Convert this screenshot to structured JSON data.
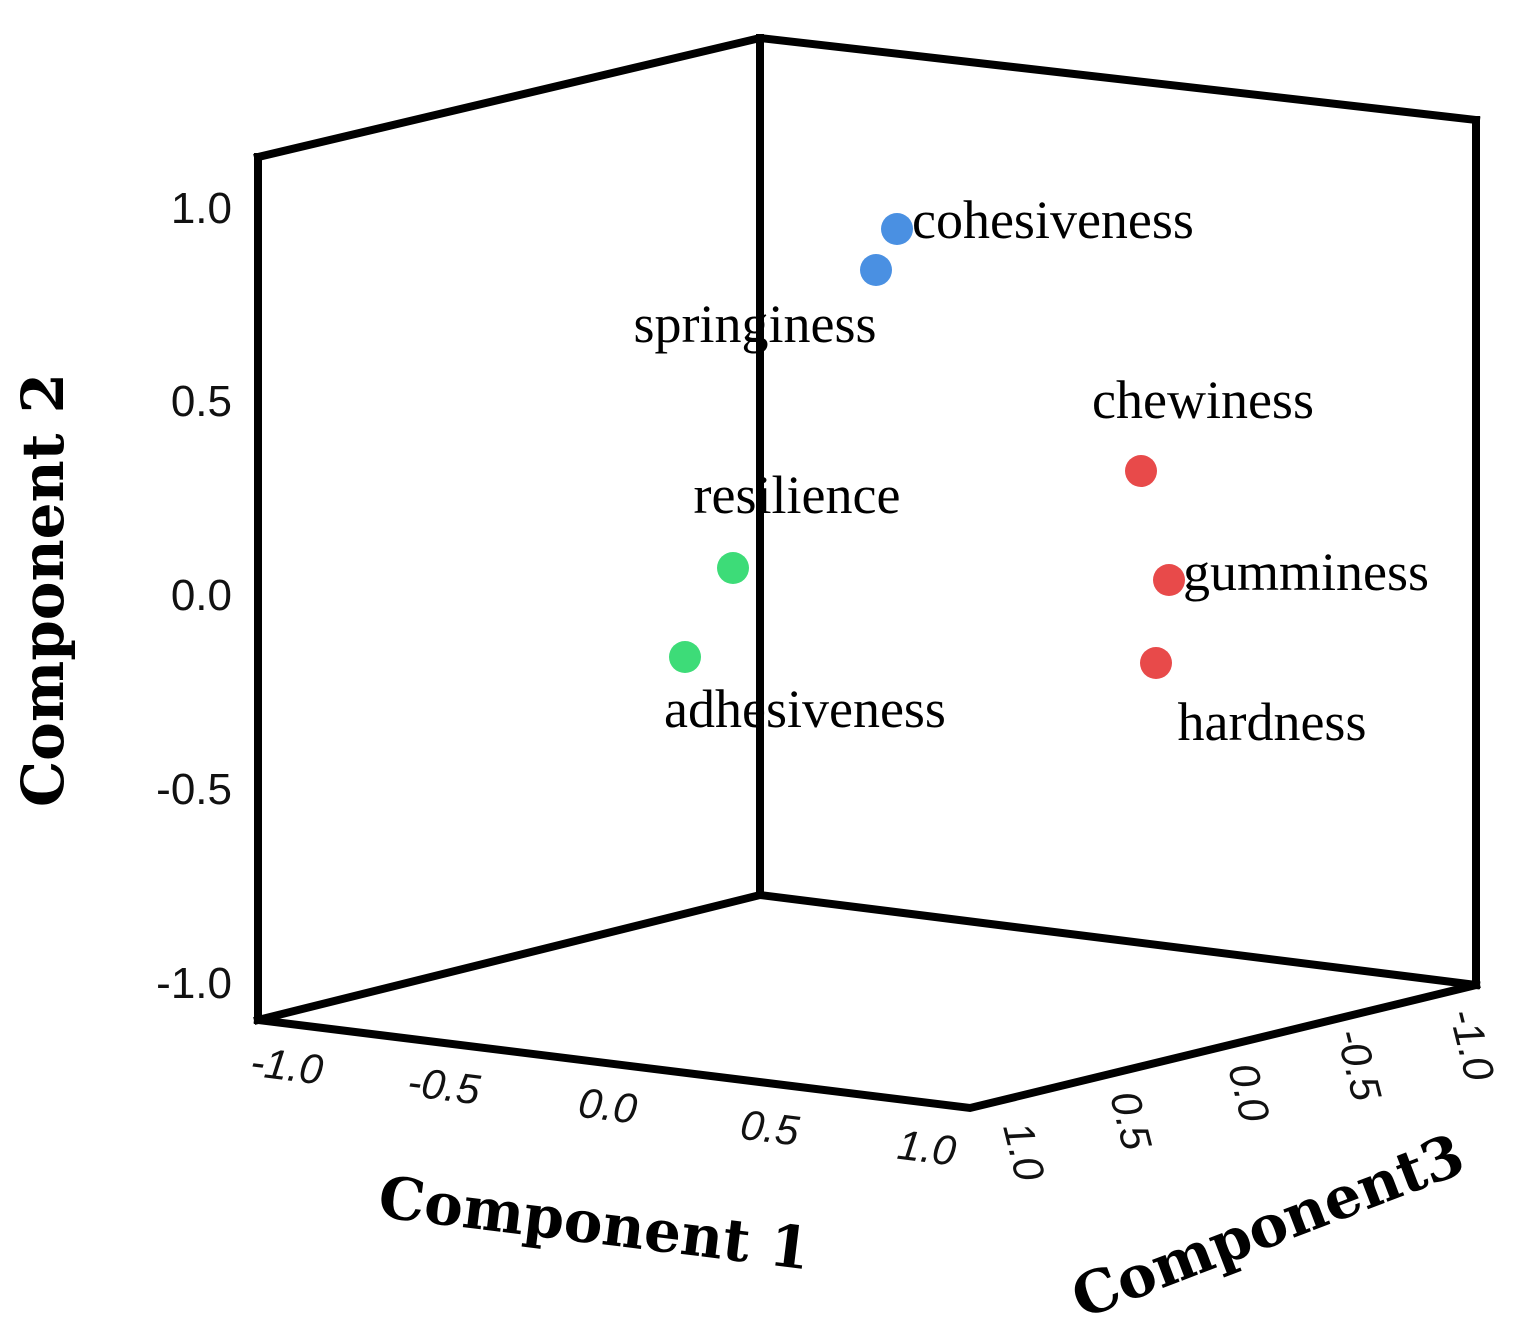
{
  "chart_data": {
    "type": "scatter",
    "projection": "3d",
    "xlabel": "Component 1",
    "ylabel": "Component 2",
    "zlabel": "Component3",
    "xlim": [
      -1.0,
      1.0
    ],
    "ylim": [
      -1.0,
      1.0
    ],
    "zlim": [
      -1.0,
      1.0
    ],
    "y_ticks": [
      "1.0",
      "0.5",
      "0.0",
      "-0.5",
      "-1.0"
    ],
    "x_ticks": [
      "-1.0",
      "-0.5",
      "0.0",
      "0.5",
      "1.0"
    ],
    "z_ticks": [
      "1.0",
      "0.5",
      "0.0",
      "-0.5",
      "-1.0"
    ],
    "colors": {
      "cluster_1": "#4a90e2",
      "cluster_2": "#3ddc78",
      "cluster_3": "#e84a4a"
    },
    "points": [
      {
        "label": "cohesiveness",
        "x": 0.2,
        "y": 0.93,
        "z": -0.2,
        "cluster": "cluster_1"
      },
      {
        "label": "springiness",
        "x": 0.2,
        "y": 0.82,
        "z": -0.1,
        "cluster": "cluster_1"
      },
      {
        "label": "resilience",
        "x": -0.2,
        "y": 0.05,
        "z": 0.05,
        "cluster": "cluster_2"
      },
      {
        "label": "adhesiveness",
        "x": -0.3,
        "y": -0.2,
        "z": 0.05,
        "cluster": "cluster_2"
      },
      {
        "label": "chewiness",
        "x": 0.9,
        "y": 0.3,
        "z": -0.3,
        "cluster": "cluster_3"
      },
      {
        "label": "gumminess",
        "x": 0.95,
        "y": 0.03,
        "z": -0.3,
        "cluster": "cluster_3"
      },
      {
        "label": "hardness",
        "x": 0.95,
        "y": -0.18,
        "z": -0.25,
        "cluster": "cluster_3"
      }
    ]
  }
}
